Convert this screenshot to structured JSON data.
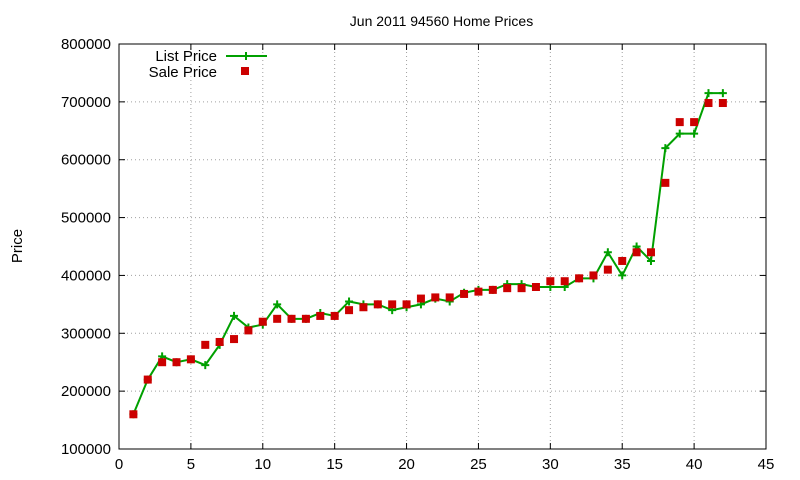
{
  "chart_data": {
    "type": "line",
    "title": "Jun 2011 94560 Home Prices",
    "xlabel": "",
    "ylabel": "Price",
    "xlim": [
      0,
      45
    ],
    "ylim": [
      100000,
      800000
    ],
    "x_ticks": [
      0,
      5,
      10,
      15,
      20,
      25,
      30,
      35,
      40,
      45
    ],
    "y_ticks": [
      100000,
      200000,
      300000,
      400000,
      500000,
      600000,
      700000,
      800000
    ],
    "grid": true,
    "legend_position": "top-left",
    "series": [
      {
        "name": "List Price",
        "style": "line-with-plus-markers",
        "color": "#00a000",
        "x": [
          1,
          2,
          3,
          4,
          5,
          6,
          7,
          8,
          9,
          10,
          11,
          12,
          13,
          14,
          15,
          16,
          17,
          18,
          19,
          20,
          21,
          22,
          23,
          24,
          25,
          26,
          27,
          28,
          29,
          30,
          31,
          32,
          33,
          34,
          35,
          36,
          37,
          38,
          39,
          40,
          41,
          42
        ],
        "values": [
          160000,
          220000,
          260000,
          250000,
          255000,
          245000,
          280000,
          330000,
          310000,
          315000,
          350000,
          325000,
          325000,
          335000,
          330000,
          355000,
          350000,
          350000,
          340000,
          345000,
          350000,
          360000,
          355000,
          370000,
          375000,
          375000,
          385000,
          385000,
          380000,
          380000,
          380000,
          395000,
          395000,
          440000,
          400000,
          450000,
          425000,
          620000,
          645000,
          645000,
          715000,
          715000
        ]
      },
      {
        "name": "Sale Price",
        "style": "square-markers",
        "color": "#cc0000",
        "x": [
          1,
          2,
          3,
          4,
          5,
          6,
          7,
          8,
          9,
          10,
          11,
          12,
          13,
          14,
          15,
          16,
          17,
          18,
          19,
          20,
          21,
          22,
          23,
          24,
          25,
          26,
          27,
          28,
          29,
          30,
          31,
          32,
          33,
          34,
          35,
          36,
          37,
          38,
          39,
          40,
          41,
          42
        ],
        "values": [
          160000,
          220000,
          250000,
          250000,
          255000,
          280000,
          285000,
          290000,
          305000,
          320000,
          325000,
          325000,
          325000,
          330000,
          330000,
          340000,
          345000,
          350000,
          350000,
          350000,
          360000,
          362000,
          362000,
          368000,
          372000,
          375000,
          378000,
          378000,
          380000,
          390000,
          390000,
          395000,
          400000,
          410000,
          425000,
          440000,
          440000,
          560000,
          665000,
          665000,
          698000,
          698000
        ]
      }
    ]
  }
}
